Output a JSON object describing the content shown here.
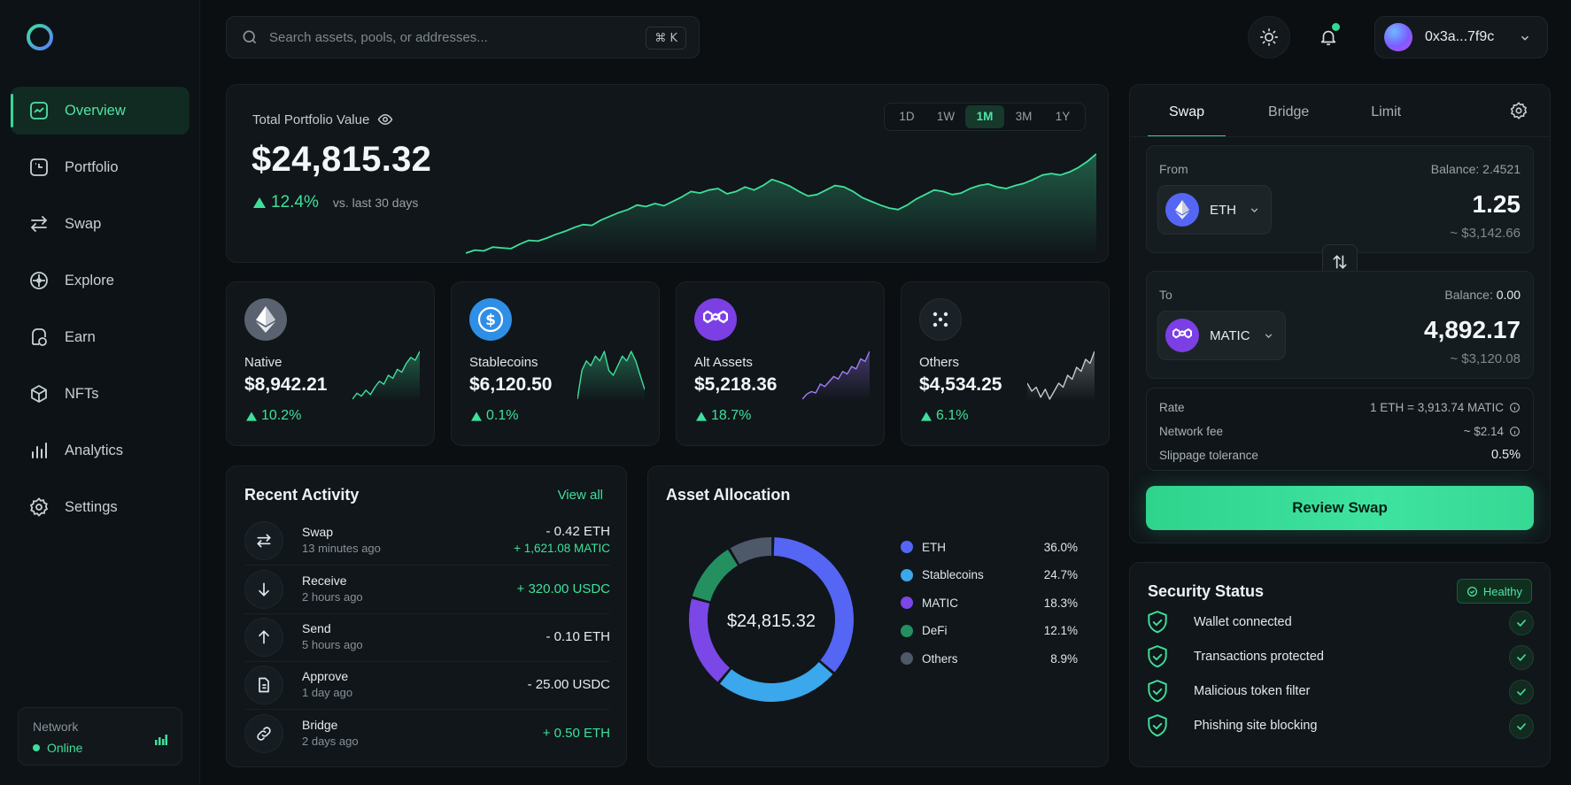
{
  "sidebar": {
    "logo": "ring-logo",
    "items": [
      {
        "label": "Overview",
        "icon": "overview-icon",
        "active": true
      },
      {
        "label": "Portfolio",
        "icon": "portfolio-icon"
      },
      {
        "label": "Swap",
        "icon": "swap-arrows-icon"
      },
      {
        "label": "Explore",
        "icon": "compass-icon"
      },
      {
        "label": "Earn",
        "icon": "earn-icon"
      },
      {
        "label": "NFTs",
        "icon": "cube-icon"
      },
      {
        "label": "Analytics",
        "icon": "bar-chart-icon"
      },
      {
        "label": "Settings",
        "icon": "gear-icon"
      }
    ],
    "network": {
      "label": "Network",
      "status": "Online"
    }
  },
  "header": {
    "search_placeholder": "Search assets, pools, or addresses...",
    "shortcut": "⌘ K",
    "wallet_address": "0x3a...7f9c"
  },
  "portfolio": {
    "label": "Total Portfolio Value",
    "value": "$24,815.32",
    "change": "12.4%",
    "change_note": "vs. last 30 days",
    "ranges": [
      "1D",
      "1W",
      "1M",
      "3M",
      "1Y"
    ],
    "active_range": "1M"
  },
  "chart_data": {
    "type": "area",
    "title": "",
    "y": [
      6,
      10,
      9,
      14,
      13,
      12,
      18,
      23,
      22,
      26,
      31,
      35,
      40,
      44,
      43,
      50,
      55,
      60,
      64,
      70,
      68,
      72,
      69,
      75,
      81,
      88,
      86,
      90,
      92,
      85,
      88,
      94,
      90,
      96,
      104,
      100,
      95,
      88,
      82,
      84,
      90,
      96,
      94,
      88,
      80,
      75,
      70,
      66,
      64,
      70,
      78,
      84,
      90,
      88,
      84,
      86,
      92,
      96,
      98,
      94,
      92,
      96,
      99,
      104,
      110,
      112,
      110,
      114,
      120,
      128,
      138
    ],
    "grid": false,
    "legend": "none"
  },
  "assets": [
    {
      "name": "Native",
      "value": "$8,942.21",
      "change": "10.2%",
      "icon": "ethereum-icon",
      "color": "#3ee09a",
      "trend": [
        10,
        14,
        12,
        16,
        13,
        18,
        22,
        20,
        26,
        24,
        30,
        28,
        34,
        38,
        36,
        42
      ]
    },
    {
      "name": "Stablecoins",
      "value": "$6,120.50",
      "change": "0.1%",
      "icon": "dollar-coin-icon",
      "color": "#3ee09a",
      "trend": [
        20,
        26,
        28,
        27,
        29,
        28,
        30,
        26,
        25,
        27,
        29,
        28,
        30,
        28,
        25,
        22
      ]
    },
    {
      "name": "Alt Assets",
      "value": "$5,218.36",
      "change": "18.7%",
      "icon": "polygon-icon",
      "color": "#a77bff",
      "trend": [
        8,
        12,
        14,
        13,
        20,
        18,
        22,
        26,
        24,
        30,
        28,
        34,
        32,
        40,
        38,
        46
      ]
    },
    {
      "name": "Others",
      "value": "$4,534.25",
      "change": "6.1%",
      "icon": "dots-grid-icon",
      "color": "#c3cbd0",
      "trend": [
        22,
        18,
        20,
        15,
        19,
        14,
        18,
        22,
        20,
        26,
        24,
        30,
        28,
        34,
        32,
        38
      ]
    }
  ],
  "activity": {
    "title": "Recent Activity",
    "view_all": "View all",
    "rows": [
      {
        "name": "Swap",
        "time": "13 minutes ago",
        "amount": "- 0.42 ETH",
        "amount2": "+ 1,621.08 MATIC",
        "icon": "swap-arrows-icon"
      },
      {
        "name": "Receive",
        "time": "2 hours ago",
        "amount": "+ 320.00 USDC",
        "icon": "arrow-down-icon"
      },
      {
        "name": "Send",
        "time": "5 hours ago",
        "amount": "- 0.10 ETH",
        "icon": "arrow-up-icon"
      },
      {
        "name": "Approve",
        "time": "1 day ago",
        "amount": "- 25.00 USDC",
        "icon": "document-icon"
      },
      {
        "name": "Bridge",
        "time": "2 days ago",
        "amount": "+ 0.50 ETH",
        "icon": "link-icon"
      }
    ]
  },
  "allocation": {
    "title": "Asset Allocation",
    "center": "$24,815.32",
    "items": [
      {
        "name": "ETH",
        "pct": "36.0%",
        "value": 36.0,
        "color": "#5566f5"
      },
      {
        "name": "Stablecoins",
        "pct": "24.7%",
        "value": 24.7,
        "color": "#3ba7ec"
      },
      {
        "name": "MATIC",
        "pct": "18.3%",
        "value": 18.3,
        "color": "#7b47e6"
      },
      {
        "name": "DeFi",
        "pct": "12.1%",
        "value": 12.1,
        "color": "#249060"
      },
      {
        "name": "Others",
        "pct": "8.9%",
        "value": 8.9,
        "color": "#4d5868"
      }
    ]
  },
  "swap": {
    "tabs": [
      "Swap",
      "Bridge",
      "Limit"
    ],
    "from": {
      "label": "From",
      "balance_label": "Balance: 2.4521",
      "token": "ETH",
      "amount": "1.25",
      "usd": "~ $3,142.66"
    },
    "to": {
      "label": "To",
      "balance_prefix": "Balance: ",
      "balance_value": "0.00",
      "token": "MATIC",
      "amount": "4,892.17",
      "usd": "~ $3,120.08"
    },
    "details": [
      {
        "label": "Rate",
        "value": "1 ETH = 3,913.74 MATIC"
      },
      {
        "label": "Network fee",
        "value": "~ $2.14"
      },
      {
        "label": "Slippage tolerance",
        "value": "0.5%"
      }
    ],
    "button": "Review Swap"
  },
  "security": {
    "title": "Security Status",
    "badge": "Healthy",
    "items": [
      "Wallet connected",
      "Transactions protected",
      "Malicious token filter",
      "Phishing site blocking"
    ]
  }
}
